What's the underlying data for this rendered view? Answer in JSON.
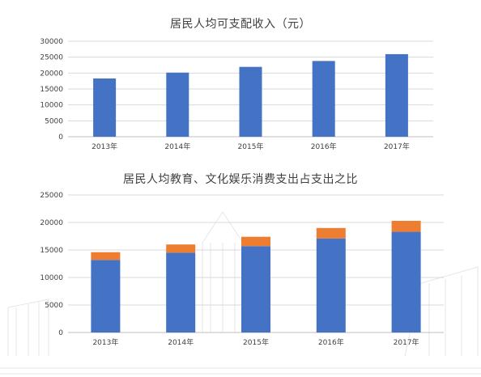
{
  "chart_data": [
    {
      "type": "bar",
      "title": "居民人均可支配收入（元）",
      "categories": [
        "2013年",
        "2014年",
        "2015年",
        "2016年",
        "2017年"
      ],
      "series": [
        {
          "values": [
            18300,
            20150,
            21950,
            23800,
            25950
          ],
          "color": "#4472c4"
        }
      ],
      "ylim": [
        0,
        30000
      ],
      "yticks": [
        "0",
        "5000",
        "10000",
        "15000",
        "20000",
        "25000",
        "30000"
      ],
      "grid": true,
      "legend": "none"
    },
    {
      "type": "bar",
      "stacked": true,
      "title": "居民人均教育、文化娱乐消费支出占支出之比",
      "categories": [
        "2013年",
        "2014年",
        "2015年",
        "2016年",
        "2017年"
      ],
      "series": [
        {
          "values": [
            13200,
            14500,
            15700,
            17100,
            18300
          ],
          "color": "#4472c4"
        },
        {
          "values": [
            1400,
            1500,
            1700,
            1900,
            2000
          ],
          "color": "#ed7d31"
        }
      ],
      "ylim": [
        0,
        25000
      ],
      "yticks": [
        "0",
        "5000",
        "10000",
        "15000",
        "20000",
        "25000"
      ],
      "grid": true,
      "legend": "none"
    }
  ]
}
